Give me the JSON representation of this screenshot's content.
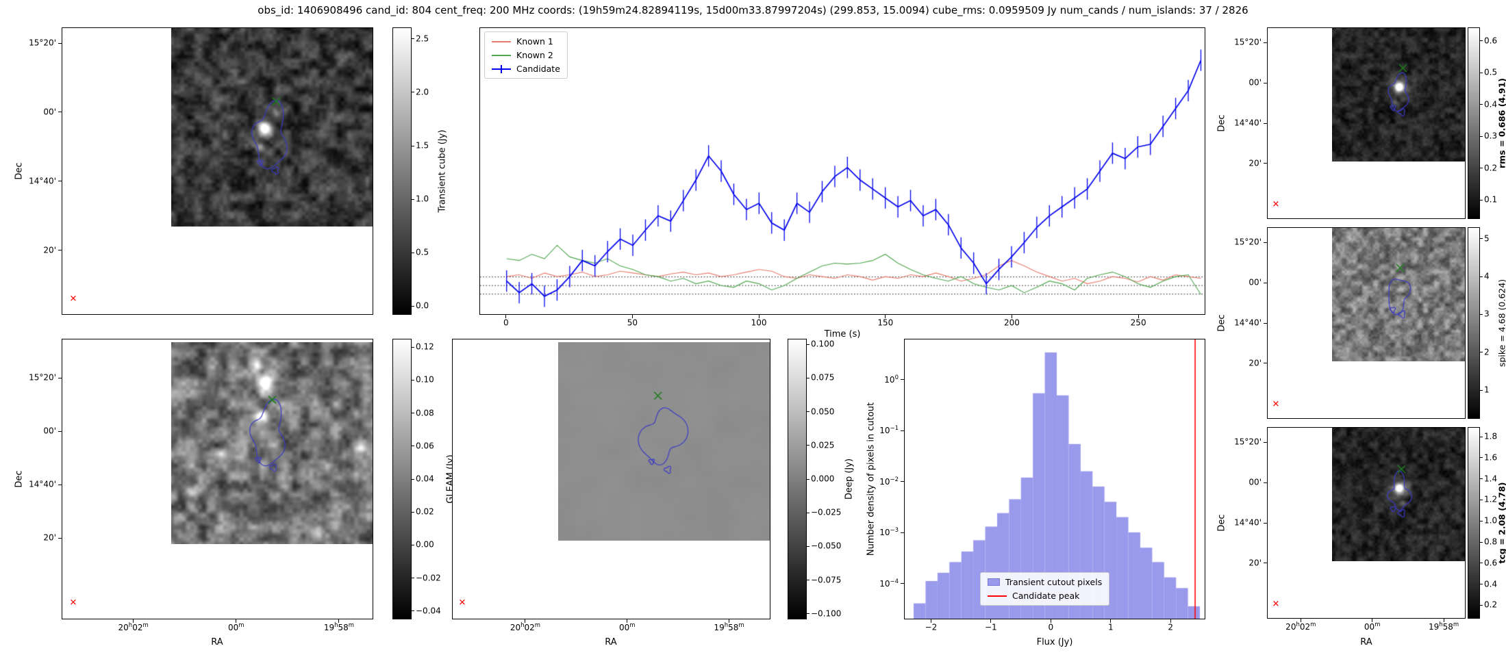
{
  "title": "obs_id: 1406908496 cand_id: 804 cent_freq: 200 MHz coords: (19h59m24.82894119s, 15d00m33.87997204s) (299.853, 15.0094) cube_rms: 0.0959509 Jy num_cands / num_islands: 37 / 2826",
  "axis": {
    "dec_label": "Dec",
    "ra_label": "RA",
    "dec_ticks": [
      "15°20'",
      "00'",
      "14°40'",
      "20'"
    ],
    "ra_ticks": [
      "20h02m",
      "00m",
      "19h58m"
    ]
  },
  "markers": {
    "x_glyph": "✕",
    "candidate_color": "#ff0000",
    "source_color": "#1a7d1a",
    "contour_color": "#3a3ac8"
  },
  "chart_data": [
    {
      "id": "lightcurve",
      "type": "line",
      "xlabel": "Time (s)",
      "xlim": [
        -10.5,
        276.5
      ],
      "ylim": [
        -0.32,
        2.88
      ],
      "xticks": [
        0,
        50,
        100,
        150,
        200,
        250
      ],
      "dotted_lines": [
        0.096,
        0,
        -0.096
      ],
      "legend_position": "upper left",
      "x": [
        0,
        5,
        10,
        15,
        20,
        25,
        30,
        35,
        40,
        45,
        50,
        55,
        60,
        65,
        70,
        75,
        80,
        85,
        90,
        95,
        100,
        105,
        110,
        115,
        120,
        125,
        130,
        135,
        140,
        145,
        150,
        155,
        160,
        165,
        170,
        175,
        180,
        185,
        190,
        195,
        200,
        205,
        210,
        215,
        220,
        225,
        230,
        235,
        240,
        245,
        250,
        255,
        260,
        265,
        270,
        275
      ],
      "series": [
        {
          "name": "Known 1",
          "color": "#e8796b",
          "values": [
            0.1,
            0.12,
            0.08,
            0.14,
            0.1,
            0.12,
            0.15,
            0.1,
            0.12,
            0.16,
            0.14,
            0.12,
            0.1,
            0.13,
            0.15,
            0.12,
            0.14,
            0.1,
            0.12,
            0.15,
            0.18,
            0.16,
            0.1,
            0.08,
            0.12,
            0.1,
            0.08,
            0.12,
            0.1,
            0.06,
            0.1,
            0.08,
            0.12,
            0.1,
            0.14,
            0.1,
            0.05,
            0.08,
            0.12,
            0.22,
            0.28,
            0.22,
            0.15,
            0.1,
            0.05,
            0.08,
            0.02,
            0.05,
            0.1,
            0.08,
            0.04,
            0.1,
            0.06,
            0.12,
            0.1,
            0.08
          ]
        },
        {
          "name": "Known 2",
          "color": "#4ba54b",
          "values": [
            0.3,
            0.28,
            0.35,
            0.3,
            0.45,
            0.32,
            0.28,
            0.25,
            0.3,
            0.22,
            0.18,
            0.12,
            0.1,
            0.05,
            0.08,
            0.02,
            0.05,
            0.0,
            -0.02,
            0.05,
            0.02,
            -0.05,
            0.0,
            0.08,
            0.15,
            0.22,
            0.25,
            0.24,
            0.25,
            0.28,
            0.35,
            0.25,
            0.18,
            0.12,
            0.08,
            0.05,
            0.1,
            0.02,
            -0.02,
            -0.05,
            0.0,
            -0.08,
            -0.02,
            0.05,
            0.02,
            -0.05,
            0.08,
            0.12,
            0.15,
            0.1,
            0.02,
            -0.02,
            0.05,
            0.1,
            0.12,
            -0.1
          ]
        },
        {
          "name": "Candidate",
          "color": "#0000ee",
          "err": 0.12,
          "values": [
            0.05,
            -0.08,
            0.02,
            -0.12,
            -0.05,
            0.1,
            0.28,
            0.22,
            0.38,
            0.52,
            0.45,
            0.62,
            0.78,
            0.72,
            0.95,
            1.18,
            1.45,
            1.28,
            1.02,
            0.85,
            0.92,
            0.7,
            0.62,
            0.92,
            0.82,
            1.05,
            1.22,
            1.32,
            1.18,
            1.08,
            0.98,
            0.88,
            0.95,
            0.78,
            0.85,
            0.68,
            0.42,
            0.25,
            0.02,
            0.18,
            0.32,
            0.48,
            0.65,
            0.78,
            0.88,
            0.98,
            1.08,
            1.28,
            1.48,
            1.42,
            1.55,
            1.58,
            1.78,
            1.98,
            2.18,
            2.52
          ]
        }
      ]
    },
    {
      "id": "flux_histogram",
      "type": "bar",
      "xlabel": "Flux (Jy)",
      "ylabel": "Number density of pixels in cutout",
      "xlim": [
        -2.45,
        2.58
      ],
      "ylim_log10": [
        -4.7,
        0.8
      ],
      "xticks": [
        -2,
        -1,
        0,
        1,
        2
      ],
      "ytick_exponents": [
        0,
        -1,
        -2,
        -3,
        -4
      ],
      "bin_start": -2.3,
      "bin_width": 0.2,
      "densities": [
        4e-05,
        0.00011,
        0.00016,
        0.00026,
        0.00042,
        0.0007,
        0.0013,
        0.0024,
        0.0045,
        0.012,
        0.55,
        3.5,
        0.5,
        0.055,
        0.016,
        0.008,
        0.004,
        0.002,
        0.001,
        0.0005,
        0.00026,
        0.00013,
        8e-05,
        3.5e-05
      ],
      "candidate_peak_x": 2.42,
      "legend": [
        "Transient cutout pixels",
        "Candidate peak"
      ],
      "fill_color": "#9a9aec",
      "line_color": "#ff0000"
    },
    {
      "id": "transient_cube_cutout",
      "type": "heatmap",
      "ylabel": "Dec",
      "yticks": [
        "15°20'",
        "00'",
        "14°40'",
        "20'"
      ],
      "colorbar": {
        "label": "Transient cube (Jy)",
        "bold": false,
        "ticks": [
          "2.5",
          "2.0",
          "1.5",
          "1.0",
          "0.5",
          "0.0"
        ]
      }
    },
    {
      "id": "gleam_cutout",
      "type": "heatmap",
      "ylabel": "Dec",
      "xlabel": "RA",
      "yticks": [
        "15°20'",
        "00'",
        "14°40'",
        "20'"
      ],
      "xticks": [
        "20h02m",
        "00m",
        "19h58m"
      ],
      "colorbar": {
        "label": "GLEAM (Jy)",
        "bold": false,
        "ticks": [
          "0.12",
          "0.10",
          "0.08",
          "0.06",
          "0.04",
          "0.02",
          "0.00",
          "−0.02",
          "−0.04"
        ]
      }
    },
    {
      "id": "deep_cutout",
      "type": "heatmap",
      "xlabel": "RA",
      "xticks": [
        "20h02m",
        "00m",
        "19h58m"
      ],
      "colorbar": {
        "label": "Deep (Jy)",
        "bold": false,
        "ticks": [
          "0.100",
          "0.075",
          "0.050",
          "0.025",
          "0.000",
          "−0.025",
          "−0.050",
          "−0.075",
          "−0.100"
        ]
      }
    },
    {
      "id": "rms_map",
      "type": "heatmap",
      "ylabel": "Dec",
      "yticks": [
        "15°20'",
        "00'",
        "14°40'",
        "20'"
      ],
      "colorbar": {
        "label": "rms = 0.686 (4.91)",
        "bold": true,
        "ticks": [
          "0.6",
          "0.5",
          "0.4",
          "0.3",
          "0.2",
          "0.1"
        ]
      }
    },
    {
      "id": "spike_map",
      "type": "heatmap",
      "ylabel": "Dec",
      "yticks": [
        "15°20'",
        "00'",
        "14°40'",
        "20'"
      ],
      "colorbar": {
        "label": "spike = 4.68 (0.624)",
        "bold": false,
        "ticks": [
          "5",
          "4",
          "3",
          "2",
          "1"
        ]
      }
    },
    {
      "id": "tcg_map",
      "type": "heatmap",
      "ylabel": "Dec",
      "xlabel": "RA",
      "yticks": [
        "15°20'",
        "00'",
        "14°40'",
        "20'"
      ],
      "xticks": [
        "20h02m",
        "00m",
        "19h58m"
      ],
      "colorbar": {
        "label": "tcg = 2.08 (4.78)",
        "bold": true,
        "ticks": [
          "1.8",
          "1.6",
          "1.4",
          "1.2",
          "1.0",
          "0.8",
          "0.6",
          "0.4",
          "0.2"
        ]
      }
    }
  ]
}
